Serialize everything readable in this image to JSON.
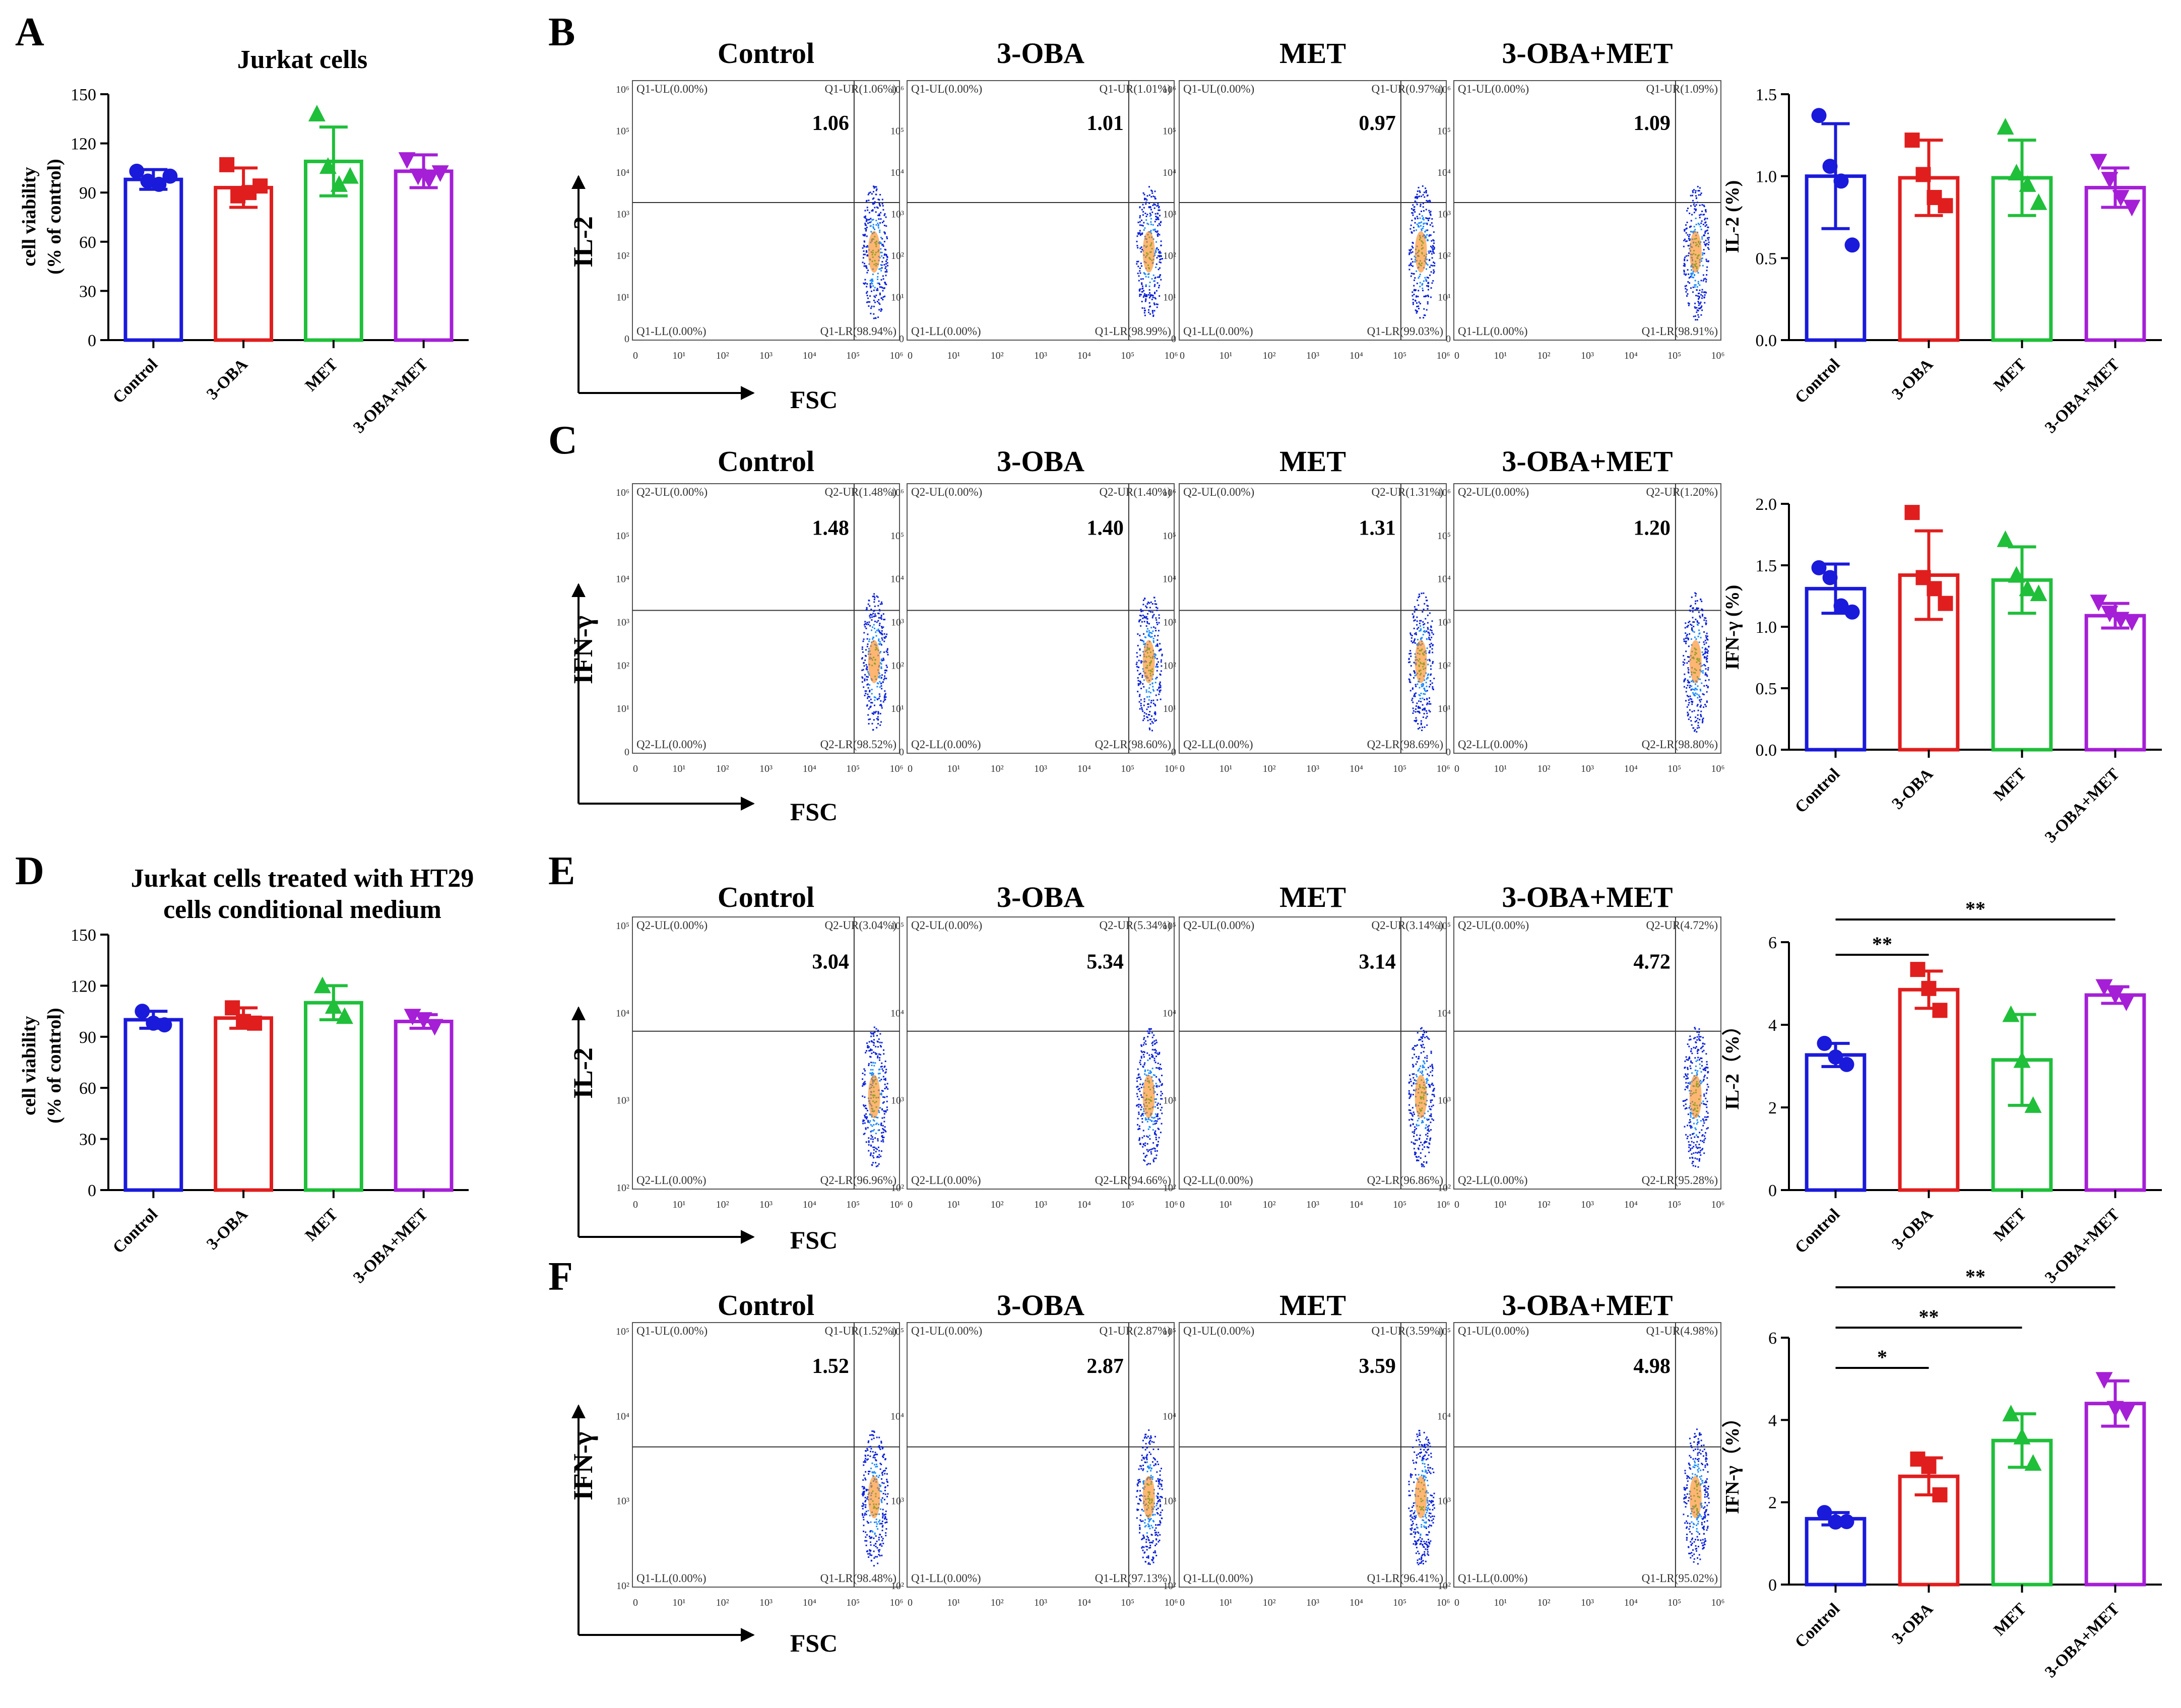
{
  "colors": {
    "Control": "#1a1adb",
    "3-OBA": "#e01e1e",
    "MET": "#1fbf3a",
    "3-OBA+MET": "#a51fd6"
  },
  "categories": [
    "Control",
    "3-OBA",
    "MET",
    "3-OBA+MET"
  ],
  "flow_columns": [
    "Control",
    "3-OBA",
    "MET",
    "3-OBA+MET"
  ],
  "panels": [
    {
      "id": "A",
      "label": "A",
      "title_lines": [
        "Jurkat cells"
      ],
      "ylabel": [
        "cell viability",
        "(% of control)"
      ],
      "ylim": [
        0,
        150
      ],
      "yticks": [
        "0",
        "30",
        "60",
        "90",
        "120",
        "150"
      ],
      "ytick_values": [
        0,
        30,
        60,
        90,
        120,
        150
      ],
      "bars": [
        {
          "mean": 98,
          "sd": 6,
          "points": [
            103,
            97,
            95,
            100
          ]
        },
        {
          "mean": 93,
          "sd": 12,
          "points": [
            107,
            88,
            90,
            94
          ]
        },
        {
          "mean": 109,
          "sd": 21,
          "points": [
            138,
            106,
            95,
            100
          ]
        },
        {
          "mean": 103,
          "sd": 10,
          "points": [
            110,
            100,
            98,
            102
          ]
        }
      ],
      "sig": []
    },
    {
      "id": "D",
      "label": "D",
      "title_lines": [
        "Jurkat cells treated with HT29",
        "cells conditional medium"
      ],
      "ylabel": [
        "cell viability",
        "(% of control)"
      ],
      "ylim": [
        0,
        150
      ],
      "yticks": [
        "0",
        "30",
        "60",
        "90",
        "120",
        "150"
      ],
      "ytick_values": [
        0,
        30,
        60,
        90,
        120,
        150
      ],
      "bars": [
        {
          "mean": 100,
          "sd": 5,
          "points": [
            105,
            98,
            97
          ]
        },
        {
          "mean": 101,
          "sd": 6,
          "points": [
            107,
            99,
            98
          ]
        },
        {
          "mean": 110,
          "sd": 10,
          "points": [
            120,
            108,
            102
          ]
        },
        {
          "mean": 99,
          "sd": 4,
          "points": [
            102,
            100,
            96
          ]
        }
      ],
      "sig": []
    },
    {
      "id": "Bbar",
      "label": "",
      "title_lines": [],
      "ylabel": [
        "IL-2 (%)"
      ],
      "ylim": [
        0,
        1.5
      ],
      "yticks": [
        "0.0",
        "0.5",
        "1.0",
        "1.5"
      ],
      "ytick_values": [
        0,
        0.5,
        1.0,
        1.5
      ],
      "bars": [
        {
          "mean": 1.0,
          "sd": 0.32,
          "points": [
            1.37,
            1.06,
            0.97,
            0.58
          ]
        },
        {
          "mean": 0.99,
          "sd": 0.23,
          "points": [
            1.22,
            1.01,
            0.87,
            0.82
          ]
        },
        {
          "mean": 0.99,
          "sd": 0.23,
          "points": [
            1.3,
            1.02,
            0.95,
            0.84
          ]
        },
        {
          "mean": 0.93,
          "sd": 0.12,
          "points": [
            1.09,
            0.98,
            0.87,
            0.81
          ]
        }
      ],
      "sig": []
    },
    {
      "id": "Cbar",
      "label": "",
      "title_lines": [],
      "ylabel": [
        "IFN-γ (%)"
      ],
      "ylim": [
        0,
        2.0
      ],
      "yticks": [
        "0.0",
        "0.5",
        "1.0",
        "1.5",
        "2.0"
      ],
      "ytick_values": [
        0,
        0.5,
        1.0,
        1.5,
        2.0
      ],
      "bars": [
        {
          "mean": 1.31,
          "sd": 0.2,
          "points": [
            1.48,
            1.4,
            1.17,
            1.12
          ]
        },
        {
          "mean": 1.42,
          "sd": 0.36,
          "points": [
            1.93,
            1.4,
            1.31,
            1.19
          ]
        },
        {
          "mean": 1.38,
          "sd": 0.27,
          "points": [
            1.71,
            1.42,
            1.31,
            1.27
          ]
        },
        {
          "mean": 1.09,
          "sd": 0.1,
          "points": [
            1.2,
            1.11,
            1.06,
            1.04
          ]
        }
      ],
      "sig": []
    },
    {
      "id": "Ebar",
      "label": "",
      "title_lines": [],
      "ylabel": [
        "IL-2（%）"
      ],
      "ylim": [
        0,
        6
      ],
      "yticks": [
        "0",
        "2",
        "4",
        "6"
      ],
      "ytick_values": [
        0,
        2,
        4,
        6
      ],
      "bars": [
        {
          "mean": 3.27,
          "sd": 0.28,
          "points": [
            3.55,
            3.22,
            3.04
          ]
        },
        {
          "mean": 4.85,
          "sd": 0.45,
          "points": [
            5.34,
            4.88,
            4.35
          ]
        },
        {
          "mean": 3.15,
          "sd": 1.1,
          "points": [
            4.25,
            3.14,
            2.05
          ]
        },
        {
          "mean": 4.72,
          "sd": 0.2,
          "points": [
            4.92,
            4.72,
            4.55
          ]
        }
      ],
      "sig": [
        {
          "from": 0,
          "to": 1,
          "label": "**"
        },
        {
          "from": 0,
          "to": 3,
          "label": "**"
        }
      ]
    },
    {
      "id": "Fbar",
      "label": "",
      "title_lines": [],
      "ylabel": [
        "IFN-γ（%）"
      ],
      "ylim": [
        0,
        6
      ],
      "yticks": [
        "0",
        "2",
        "4",
        "6"
      ],
      "ytick_values": [
        0,
        2,
        4,
        6
      ],
      "bars": [
        {
          "mean": 1.6,
          "sd": 0.15,
          "points": [
            1.75,
            1.52,
            1.53
          ]
        },
        {
          "mean": 2.63,
          "sd": 0.45,
          "points": [
            3.05,
            2.87,
            2.18
          ]
        },
        {
          "mean": 3.5,
          "sd": 0.65,
          "points": [
            4.15,
            3.59,
            2.95
          ]
        },
        {
          "mean": 4.4,
          "sd": 0.55,
          "points": [
            4.98,
            4.28,
            4.18
          ]
        }
      ],
      "sig": [
        {
          "from": 0,
          "to": 1,
          "label": "*"
        },
        {
          "from": 0,
          "to": 2,
          "label": "**"
        },
        {
          "from": 0,
          "to": 3,
          "label": "**"
        }
      ]
    }
  ],
  "flow_rows": [
    {
      "id": "B",
      "label": "B",
      "ylabel": "IL-2",
      "xlabel": "FSC",
      "quad_prefix": "Q1",
      "lr_values": [
        "98.94%",
        "98.99%",
        "99.03%",
        "98.91%"
      ],
      "ur_values": [
        "1.06%",
        "1.01%",
        "0.97%",
        "1.09%"
      ],
      "big_values": [
        "1.06",
        "1.01",
        "0.97",
        "1.09"
      ],
      "yticks": [
        "0",
        "10¹",
        "10²",
        "10³",
        "10⁴",
        "10⁵",
        "10⁶"
      ],
      "xticks": [
        "0",
        "10¹",
        "10²",
        "10³",
        "10⁴",
        "10⁵",
        "10⁶"
      ]
    },
    {
      "id": "C",
      "label": "C",
      "ylabel": "IFN-γ",
      "xlabel": "FSC",
      "quad_prefix": "Q2",
      "lr_values": [
        "98.52%",
        "98.60%",
        "98.69%",
        "98.80%"
      ],
      "ur_values": [
        "1.48%",
        "1.40%",
        "1.31%",
        "1.20%"
      ],
      "big_values": [
        "1.48",
        "1.40",
        "1.31",
        "1.20"
      ],
      "yticks": [
        "0",
        "10¹",
        "10²",
        "10³",
        "10⁴",
        "10⁵",
        "10⁶"
      ],
      "xticks": [
        "0",
        "10¹",
        "10²",
        "10³",
        "10⁴",
        "10⁵",
        "10⁶"
      ]
    },
    {
      "id": "E",
      "label": "E",
      "ylabel": "IL-2",
      "xlabel": "FSC",
      "quad_prefix": "Q2",
      "lr_values": [
        "96.96%",
        "94.66%",
        "96.86%",
        "95.28%"
      ],
      "ur_values": [
        "3.04%",
        "5.34%",
        "3.14%",
        "4.72%"
      ],
      "big_values": [
        "3.04",
        "5.34",
        "3.14",
        "4.72"
      ],
      "yticks": [
        "10²",
        "10³",
        "10⁴",
        "10⁵"
      ],
      "xticks": [
        "0",
        "10¹",
        "10²",
        "10³",
        "10⁴",
        "10⁵",
        "10⁶"
      ]
    },
    {
      "id": "F",
      "label": "F",
      "ylabel": "IFN-γ",
      "xlabel": "FSC",
      "quad_prefix": "Q1",
      "lr_values": [
        "98.48%",
        "97.13%",
        "96.41%",
        "95.02%"
      ],
      "ur_values": [
        "1.52%",
        "2.87%",
        "3.59%",
        "4.98%"
      ],
      "big_values": [
        "1.52",
        "2.87",
        "3.59",
        "4.98"
      ],
      "yticks": [
        "10²",
        "10³",
        "10⁴",
        "10⁵"
      ],
      "xticks": [
        "0",
        "10¹",
        "10²",
        "10³",
        "10⁴",
        "10⁵",
        "10⁶"
      ]
    }
  ],
  "chart_data": [
    {
      "type": "bar",
      "panel": "A",
      "title": "Jurkat cells",
      "ylabel": "cell viability (% of control)",
      "ylim": [
        0,
        150
      ],
      "categories": [
        "Control",
        "3-OBA",
        "MET",
        "3-OBA+MET"
      ],
      "values": [
        98,
        93,
        109,
        103
      ],
      "errors": [
        6,
        12,
        21,
        10
      ]
    },
    {
      "type": "bar",
      "panel": "B",
      "ylabel": "IL-2 (%)",
      "ylim": [
        0,
        1.5
      ],
      "categories": [
        "Control",
        "3-OBA",
        "MET",
        "3-OBA+MET"
      ],
      "values": [
        1.0,
        0.99,
        0.99,
        0.93
      ],
      "errors": [
        0.32,
        0.23,
        0.23,
        0.12
      ]
    },
    {
      "type": "bar",
      "panel": "C",
      "ylabel": "IFN-γ (%)",
      "ylim": [
        0,
        2.0
      ],
      "categories": [
        "Control",
        "3-OBA",
        "MET",
        "3-OBA+MET"
      ],
      "values": [
        1.31,
        1.42,
        1.38,
        1.09
      ],
      "errors": [
        0.2,
        0.36,
        0.27,
        0.1
      ]
    },
    {
      "type": "bar",
      "panel": "D",
      "title": "Jurkat cells treated with HT29 cells conditional medium",
      "ylabel": "cell viability (% of control)",
      "ylim": [
        0,
        150
      ],
      "categories": [
        "Control",
        "3-OBA",
        "MET",
        "3-OBA+MET"
      ],
      "values": [
        100,
        101,
        110,
        99
      ],
      "errors": [
        5,
        6,
        10,
        4
      ]
    },
    {
      "type": "bar",
      "panel": "E",
      "ylabel": "IL-2（%）",
      "ylim": [
        0,
        6
      ],
      "categories": [
        "Control",
        "3-OBA",
        "MET",
        "3-OBA+MET"
      ],
      "values": [
        3.27,
        4.85,
        3.15,
        4.72
      ],
      "errors": [
        0.28,
        0.45,
        1.1,
        0.2
      ],
      "significance": [
        "Control vs 3-OBA **",
        "Control vs 3-OBA+MET **"
      ]
    },
    {
      "type": "bar",
      "panel": "F",
      "ylabel": "IFN-γ（%）",
      "ylim": [
        0,
        6
      ],
      "categories": [
        "Control",
        "3-OBA",
        "MET",
        "3-OBA+MET"
      ],
      "values": [
        1.6,
        2.63,
        3.5,
        4.4
      ],
      "errors": [
        0.15,
        0.45,
        0.65,
        0.55
      ],
      "significance": [
        "Control vs 3-OBA *",
        "Control vs MET **",
        "Control vs 3-OBA+MET **"
      ]
    }
  ]
}
